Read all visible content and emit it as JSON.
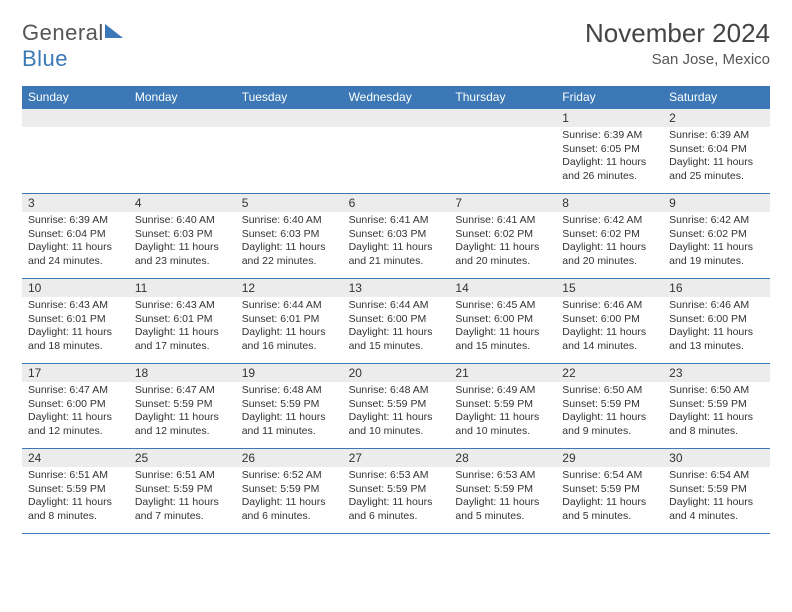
{
  "logo": {
    "word1": "General",
    "word2": "Blue"
  },
  "title": "November 2024",
  "location": "San Jose, Mexico",
  "colors": {
    "accent": "#3b78b5",
    "headerBg": "#ececec",
    "text": "#333333",
    "background": "#ffffff"
  },
  "typography": {
    "title_fontsize": 26,
    "location_fontsize": 15,
    "dow_fontsize": 12,
    "daynum_fontsize": 12,
    "body_fontsize": 10.5
  },
  "dow": [
    "Sunday",
    "Monday",
    "Tuesday",
    "Wednesday",
    "Thursday",
    "Friday",
    "Saturday"
  ],
  "grid": {
    "columns": 7,
    "rows": 5
  },
  "weeks": [
    [
      {
        "blank": true
      },
      {
        "blank": true
      },
      {
        "blank": true
      },
      {
        "blank": true
      },
      {
        "blank": true
      },
      {
        "n": "1",
        "sr": "Sunrise: 6:39 AM",
        "ss": "Sunset: 6:05 PM",
        "d1": "Daylight: 11 hours",
        "d2": "and 26 minutes."
      },
      {
        "n": "2",
        "sr": "Sunrise: 6:39 AM",
        "ss": "Sunset: 6:04 PM",
        "d1": "Daylight: 11 hours",
        "d2": "and 25 minutes."
      }
    ],
    [
      {
        "n": "3",
        "sr": "Sunrise: 6:39 AM",
        "ss": "Sunset: 6:04 PM",
        "d1": "Daylight: 11 hours",
        "d2": "and 24 minutes."
      },
      {
        "n": "4",
        "sr": "Sunrise: 6:40 AM",
        "ss": "Sunset: 6:03 PM",
        "d1": "Daylight: 11 hours",
        "d2": "and 23 minutes."
      },
      {
        "n": "5",
        "sr": "Sunrise: 6:40 AM",
        "ss": "Sunset: 6:03 PM",
        "d1": "Daylight: 11 hours",
        "d2": "and 22 minutes."
      },
      {
        "n": "6",
        "sr": "Sunrise: 6:41 AM",
        "ss": "Sunset: 6:03 PM",
        "d1": "Daylight: 11 hours",
        "d2": "and 21 minutes."
      },
      {
        "n": "7",
        "sr": "Sunrise: 6:41 AM",
        "ss": "Sunset: 6:02 PM",
        "d1": "Daylight: 11 hours",
        "d2": "and 20 minutes."
      },
      {
        "n": "8",
        "sr": "Sunrise: 6:42 AM",
        "ss": "Sunset: 6:02 PM",
        "d1": "Daylight: 11 hours",
        "d2": "and 20 minutes."
      },
      {
        "n": "9",
        "sr": "Sunrise: 6:42 AM",
        "ss": "Sunset: 6:02 PM",
        "d1": "Daylight: 11 hours",
        "d2": "and 19 minutes."
      }
    ],
    [
      {
        "n": "10",
        "sr": "Sunrise: 6:43 AM",
        "ss": "Sunset: 6:01 PM",
        "d1": "Daylight: 11 hours",
        "d2": "and 18 minutes."
      },
      {
        "n": "11",
        "sr": "Sunrise: 6:43 AM",
        "ss": "Sunset: 6:01 PM",
        "d1": "Daylight: 11 hours",
        "d2": "and 17 minutes."
      },
      {
        "n": "12",
        "sr": "Sunrise: 6:44 AM",
        "ss": "Sunset: 6:01 PM",
        "d1": "Daylight: 11 hours",
        "d2": "and 16 minutes."
      },
      {
        "n": "13",
        "sr": "Sunrise: 6:44 AM",
        "ss": "Sunset: 6:00 PM",
        "d1": "Daylight: 11 hours",
        "d2": "and 15 minutes."
      },
      {
        "n": "14",
        "sr": "Sunrise: 6:45 AM",
        "ss": "Sunset: 6:00 PM",
        "d1": "Daylight: 11 hours",
        "d2": "and 15 minutes."
      },
      {
        "n": "15",
        "sr": "Sunrise: 6:46 AM",
        "ss": "Sunset: 6:00 PM",
        "d1": "Daylight: 11 hours",
        "d2": "and 14 minutes."
      },
      {
        "n": "16",
        "sr": "Sunrise: 6:46 AM",
        "ss": "Sunset: 6:00 PM",
        "d1": "Daylight: 11 hours",
        "d2": "and 13 minutes."
      }
    ],
    [
      {
        "n": "17",
        "sr": "Sunrise: 6:47 AM",
        "ss": "Sunset: 6:00 PM",
        "d1": "Daylight: 11 hours",
        "d2": "and 12 minutes."
      },
      {
        "n": "18",
        "sr": "Sunrise: 6:47 AM",
        "ss": "Sunset: 5:59 PM",
        "d1": "Daylight: 11 hours",
        "d2": "and 12 minutes."
      },
      {
        "n": "19",
        "sr": "Sunrise: 6:48 AM",
        "ss": "Sunset: 5:59 PM",
        "d1": "Daylight: 11 hours",
        "d2": "and 11 minutes."
      },
      {
        "n": "20",
        "sr": "Sunrise: 6:48 AM",
        "ss": "Sunset: 5:59 PM",
        "d1": "Daylight: 11 hours",
        "d2": "and 10 minutes."
      },
      {
        "n": "21",
        "sr": "Sunrise: 6:49 AM",
        "ss": "Sunset: 5:59 PM",
        "d1": "Daylight: 11 hours",
        "d2": "and 10 minutes."
      },
      {
        "n": "22",
        "sr": "Sunrise: 6:50 AM",
        "ss": "Sunset: 5:59 PM",
        "d1": "Daylight: 11 hours",
        "d2": "and 9 minutes."
      },
      {
        "n": "23",
        "sr": "Sunrise: 6:50 AM",
        "ss": "Sunset: 5:59 PM",
        "d1": "Daylight: 11 hours",
        "d2": "and 8 minutes."
      }
    ],
    [
      {
        "n": "24",
        "sr": "Sunrise: 6:51 AM",
        "ss": "Sunset: 5:59 PM",
        "d1": "Daylight: 11 hours",
        "d2": "and 8 minutes."
      },
      {
        "n": "25",
        "sr": "Sunrise: 6:51 AM",
        "ss": "Sunset: 5:59 PM",
        "d1": "Daylight: 11 hours",
        "d2": "and 7 minutes."
      },
      {
        "n": "26",
        "sr": "Sunrise: 6:52 AM",
        "ss": "Sunset: 5:59 PM",
        "d1": "Daylight: 11 hours",
        "d2": "and 6 minutes."
      },
      {
        "n": "27",
        "sr": "Sunrise: 6:53 AM",
        "ss": "Sunset: 5:59 PM",
        "d1": "Daylight: 11 hours",
        "d2": "and 6 minutes."
      },
      {
        "n": "28",
        "sr": "Sunrise: 6:53 AM",
        "ss": "Sunset: 5:59 PM",
        "d1": "Daylight: 11 hours",
        "d2": "and 5 minutes."
      },
      {
        "n": "29",
        "sr": "Sunrise: 6:54 AM",
        "ss": "Sunset: 5:59 PM",
        "d1": "Daylight: 11 hours",
        "d2": "and 5 minutes."
      },
      {
        "n": "30",
        "sr": "Sunrise: 6:54 AM",
        "ss": "Sunset: 5:59 PM",
        "d1": "Daylight: 11 hours",
        "d2": "and 4 minutes."
      }
    ]
  ]
}
